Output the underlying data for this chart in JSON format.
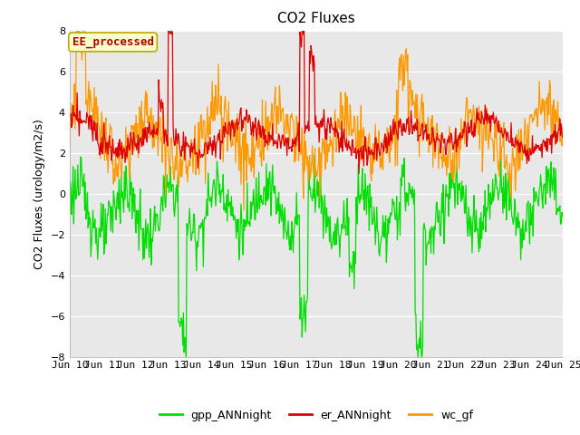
{
  "title": "CO2 Fluxes",
  "ylabel": "CO2 Fluxes (urology/m2/s)",
  "ylim": [
    -8,
    8
  ],
  "yticks": [
    -8,
    -6,
    -4,
    -2,
    0,
    2,
    4,
    6,
    8
  ],
  "xtick_labels": [
    "Jun 10",
    "Jun 11",
    "Jun 12",
    "Jun 13",
    "Jun 14",
    "Jun 15",
    "Jun 16",
    "Jun 17",
    "Jun 18",
    "Jun 19",
    "Jun 20",
    "Jun 21",
    "Jun 22",
    "Jun 23",
    "Jun 24",
    "Jun 25"
  ],
  "gpp_color": "#00dd00",
  "er_color": "#dd0000",
  "wc_color": "#ff9900",
  "figure_bg": "#ffffff",
  "plot_bg": "#e8e8e8",
  "grid_color": "#ffffff",
  "legend_label_gpp": "gpp_ANNnight",
  "legend_label_er": "er_ANNnight",
  "legend_label_wc": "wc_gf",
  "annotation_text": "EE_processed",
  "annotation_color": "#aa0000",
  "annotation_bg": "#ffffcc",
  "annotation_border": "#bbaa00",
  "title_fontsize": 11,
  "label_fontsize": 9,
  "tick_fontsize": 8,
  "legend_fontsize": 9,
  "line_width": 0.9
}
